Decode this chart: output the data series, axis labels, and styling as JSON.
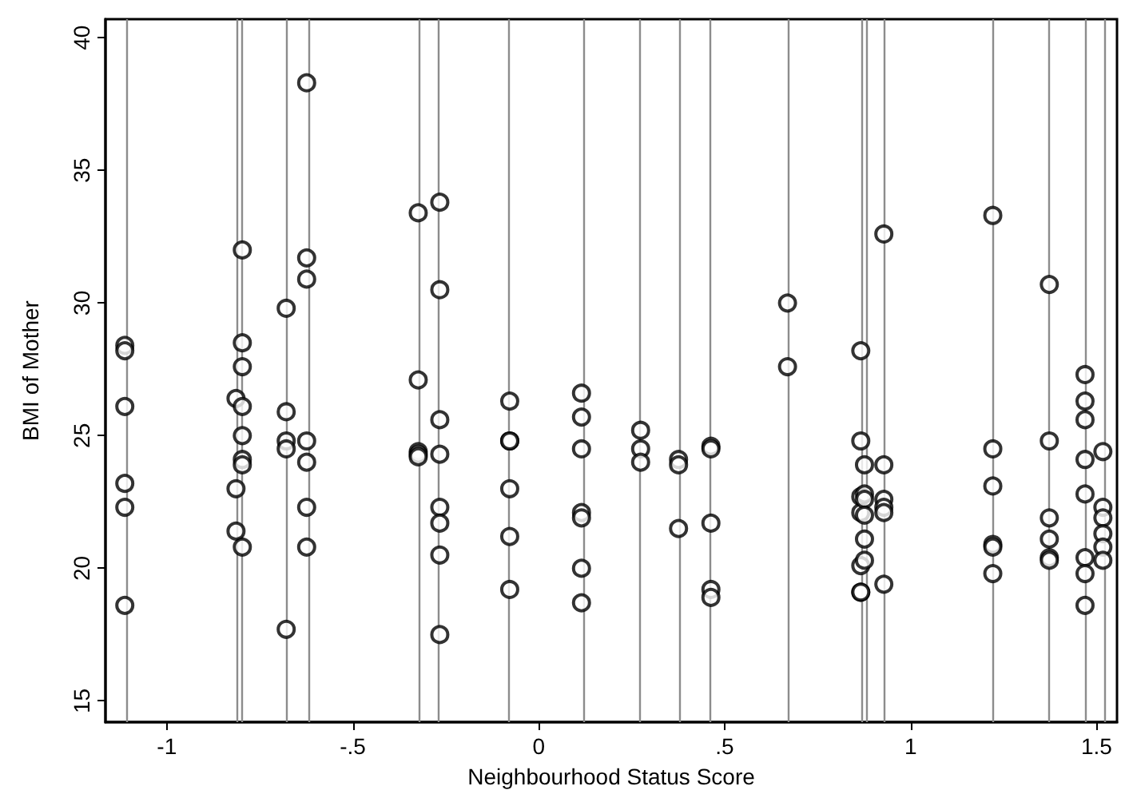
{
  "chart_data": {
    "type": "scatter",
    "xlabel": "Neighbourhood Status Score",
    "ylabel": "BMI of Mother",
    "marker": "circle",
    "grid": false,
    "xlim": [
      -1.165,
      1.555
    ],
    "ylim": [
      14.2,
      40.7
    ],
    "xticks": [
      {
        "value": -1,
        "label": "-1"
      },
      {
        "value": -0.5,
        "label": "-.5"
      },
      0,
      {
        "value": 0.5,
        "label": ".5"
      },
      1,
      1.5
    ],
    "yticks": [
      15,
      20,
      25,
      30,
      35,
      40
    ],
    "series": [
      {
        "color": "#000000",
        "x": [
          -1.113,
          -1.113,
          -1.113,
          -1.113,
          -1.113,
          -1.113,
          -0.814,
          -0.814,
          -0.814,
          -0.797,
          -0.797,
          -0.797,
          -0.797,
          -0.797,
          -0.797,
          -0.797,
          -0.797,
          -0.679,
          -0.679,
          -0.679,
          -0.679,
          -0.679,
          -0.624,
          -0.624,
          -0.624,
          -0.624,
          -0.624,
          -0.624,
          -0.624,
          -0.324,
          -0.324,
          -0.324,
          -0.324,
          -0.324,
          -0.266,
          -0.266,
          -0.266,
          -0.266,
          -0.266,
          -0.266,
          -0.266,
          -0.266,
          -0.078,
          -0.078,
          -0.078,
          -0.078,
          -0.078,
          -0.078,
          0.115,
          0.115,
          0.115,
          0.115,
          0.115,
          0.115,
          0.115,
          0.274,
          0.274,
          0.274,
          0.376,
          0.376,
          0.376,
          0.463,
          0.463,
          0.463,
          0.463,
          0.463,
          0.669,
          0.669,
          0.866,
          0.866,
          0.866,
          0.866,
          0.866,
          0.866,
          0.866,
          0.876,
          0.876,
          0.876,
          0.876,
          0.876,
          0.876,
          0.928,
          0.928,
          0.928,
          0.928,
          0.928,
          0.928,
          1.221,
          1.221,
          1.221,
          1.221,
          1.221,
          1.221,
          1.373,
          1.373,
          1.373,
          1.373,
          1.373,
          1.373,
          1.469,
          1.469,
          1.469,
          1.469,
          1.469,
          1.469,
          1.469,
          1.469,
          1.517,
          1.517,
          1.517,
          1.517,
          1.517,
          1.517
        ],
        "values": [
          28.4,
          28.2,
          26.1,
          23.2,
          22.3,
          18.6,
          26.4,
          23.0,
          21.4,
          32.0,
          28.5,
          27.6,
          26.1,
          25.0,
          24.1,
          23.9,
          20.8,
          29.8,
          25.9,
          24.8,
          24.5,
          17.7,
          38.3,
          31.7,
          30.9,
          24.8,
          24.0,
          22.3,
          20.8,
          33.4,
          27.1,
          24.4,
          24.3,
          24.2,
          33.8,
          30.5,
          25.6,
          24.3,
          22.3,
          21.7,
          20.5,
          17.5,
          26.3,
          24.8,
          24.8,
          23.0,
          21.2,
          19.2,
          26.6,
          25.7,
          24.5,
          22.1,
          21.9,
          20.0,
          18.7,
          25.2,
          24.5,
          24.0,
          24.1,
          23.9,
          21.5,
          24.6,
          24.5,
          21.7,
          19.2,
          18.9,
          30.0,
          27.6,
          28.2,
          24.8,
          22.7,
          22.1,
          20.1,
          19.1,
          19.1,
          23.9,
          22.8,
          22.6,
          22.0,
          21.1,
          20.3,
          32.6,
          23.9,
          22.6,
          22.3,
          22.1,
          19.4,
          33.3,
          24.5,
          23.1,
          20.9,
          20.8,
          19.8,
          30.7,
          24.8,
          21.9,
          21.1,
          20.4,
          20.3,
          27.3,
          26.3,
          25.6,
          24.1,
          22.8,
          20.4,
          19.8,
          18.6,
          24.4,
          22.3,
          21.9,
          21.3,
          20.8,
          20.3
        ]
      }
    ],
    "ref_lines": [
      {
        "axis": "x",
        "value": -1.113,
        "color": "#8c8c8c"
      },
      {
        "axis": "x",
        "value": -0.814,
        "color": "#8c8c8c"
      },
      {
        "axis": "x",
        "value": -0.797,
        "color": "#8c8c8c"
      },
      {
        "axis": "x",
        "value": -0.679,
        "color": "#8c8c8c"
      },
      {
        "axis": "x",
        "value": -0.624,
        "color": "#8c8c8c"
      },
      {
        "axis": "x",
        "value": -0.324,
        "color": "#8c8c8c"
      },
      {
        "axis": "x",
        "value": -0.266,
        "color": "#8c8c8c"
      },
      {
        "axis": "x",
        "value": -0.078,
        "color": "#8c8c8c"
      },
      {
        "axis": "x",
        "value": 0.115,
        "color": "#8c8c8c"
      },
      {
        "axis": "x",
        "value": 0.274,
        "color": "#8c8c8c"
      },
      {
        "axis": "x",
        "value": 0.376,
        "color": "#8c8c8c"
      },
      {
        "axis": "x",
        "value": 0.463,
        "color": "#8c8c8c"
      },
      {
        "axis": "x",
        "value": 0.669,
        "color": "#8c8c8c"
      },
      {
        "axis": "x",
        "value": 0.866,
        "color": "#8c8c8c"
      },
      {
        "axis": "x",
        "value": 0.876,
        "color": "#8c8c8c"
      },
      {
        "axis": "x",
        "value": 0.928,
        "color": "#8c8c8c"
      },
      {
        "axis": "x",
        "value": 1.221,
        "color": "#8c8c8c"
      },
      {
        "axis": "x",
        "value": 1.373,
        "color": "#8c8c8c"
      },
      {
        "axis": "x",
        "value": 1.469,
        "color": "#8c8c8c"
      },
      {
        "axis": "x",
        "value": 1.517,
        "color": "#8c8c8c"
      }
    ]
  }
}
